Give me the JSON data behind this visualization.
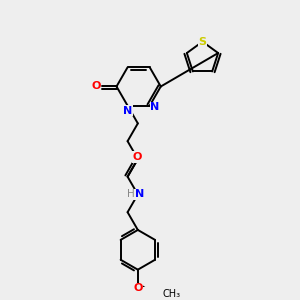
{
  "background_color": "#eeeeee",
  "bond_color": "#000000",
  "atom_colors": {
    "S": "#cccc00",
    "N": "#0000ff",
    "O": "#ff0000",
    "H": "#888888",
    "C": "#000000"
  }
}
